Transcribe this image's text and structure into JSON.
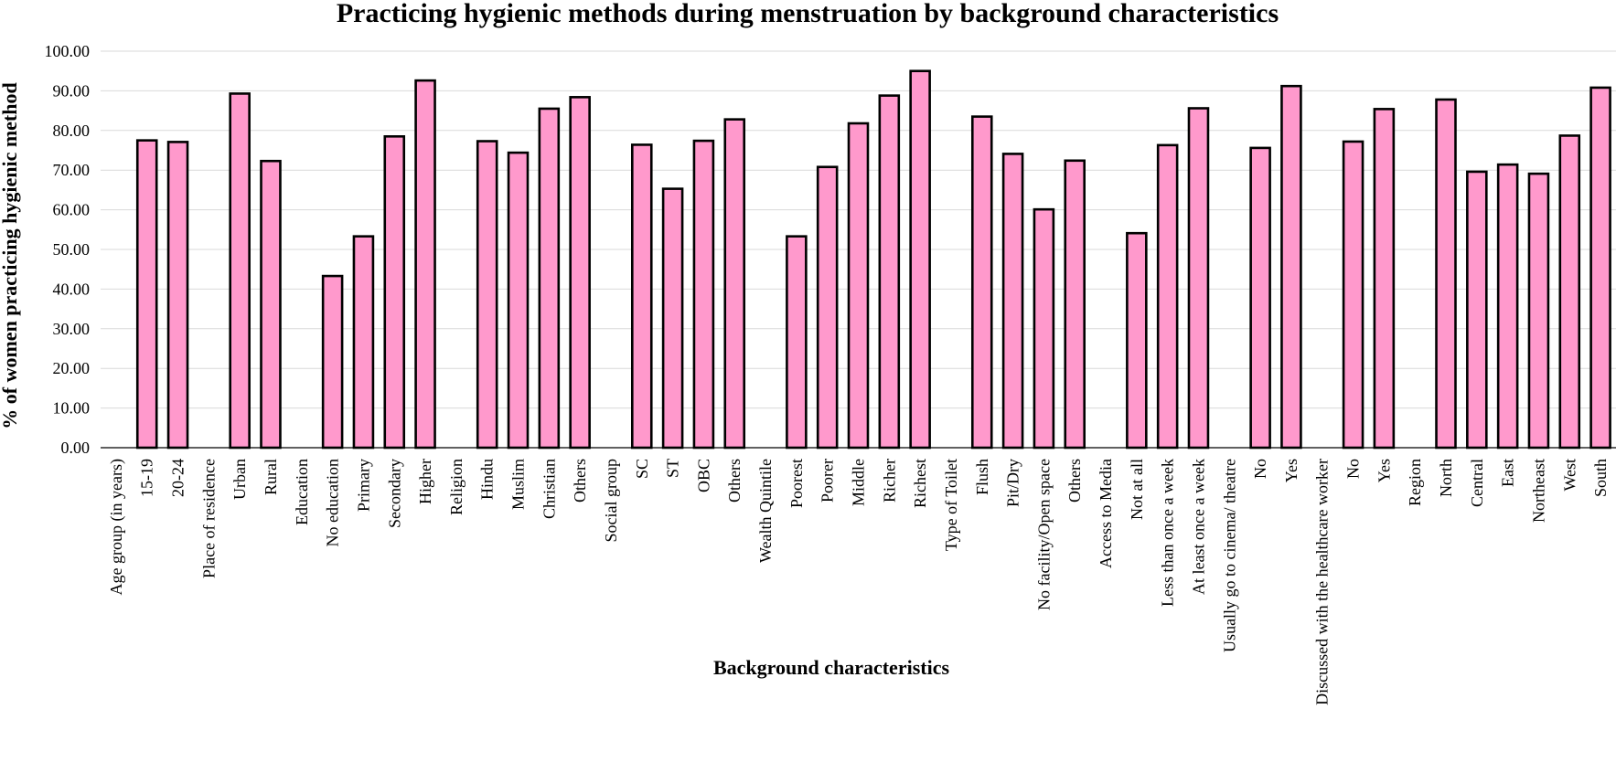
{
  "chart_data": {
    "type": "bar",
    "title": "Practicing hygienic methods during menstruation by background characteristics",
    "xlabel": "Background characteristics",
    "ylabel": "% of women practicing hygienic method",
    "ylim": [
      0,
      100
    ],
    "yticks": [
      "0.00",
      "10.00",
      "20.00",
      "30.00",
      "40.00",
      "50.00",
      "60.00",
      "70.00",
      "80.00",
      "90.00",
      "100.00"
    ],
    "grid": true,
    "bar_color": "#ff99cc",
    "bar_border_color": "#000000",
    "categories": [
      "Age group (in years)",
      "15-19",
      "20-24",
      "Place of residence",
      "Urban",
      "Rural",
      "Education",
      "No education",
      "Primary",
      "Secondary",
      "Higher",
      "Religion",
      "Hindu",
      "Muslim",
      "Christian",
      "Others",
      "Social group",
      "SC",
      "ST",
      "OBC",
      "Others",
      "Wealth Quintile",
      "Poorest",
      "Poorer",
      "Middle",
      "Richer",
      "Richest",
      "Type of Toilet",
      "Flush",
      "Pit/Dry",
      "No facility/Open space",
      "Others",
      "Access to Media",
      "Not at all",
      "Less than once a week",
      "At least once a week",
      "Usually go to cinema/ theatre",
      "No",
      "Yes",
      "Discussed with the healthcare worker",
      "No",
      "Yes",
      "Region",
      "North",
      "Central",
      "East",
      "Northeast",
      "West",
      "South"
    ],
    "values": [
      null,
      77.5,
      77.1,
      null,
      89.3,
      72.3,
      null,
      43.3,
      53.3,
      78.5,
      92.6,
      null,
      77.3,
      74.4,
      85.5,
      88.4,
      null,
      76.4,
      65.3,
      77.4,
      82.8,
      null,
      53.3,
      70.8,
      81.8,
      88.8,
      95.0,
      null,
      83.5,
      74.1,
      60.1,
      72.4,
      null,
      54.1,
      76.3,
      85.6,
      null,
      75.6,
      91.2,
      null,
      77.2,
      85.4,
      null,
      87.8,
      69.6,
      71.4,
      69.1,
      78.7,
      90.8
    ]
  }
}
